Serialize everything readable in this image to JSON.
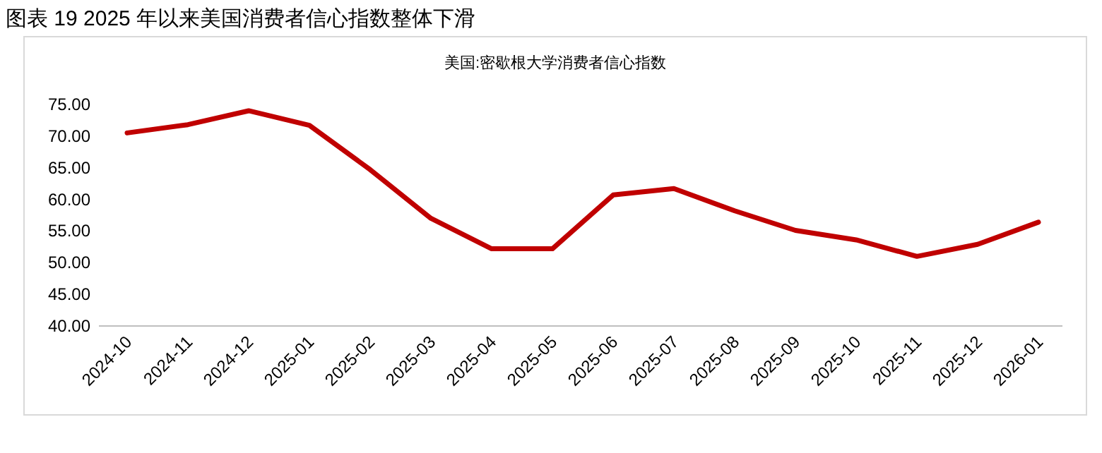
{
  "chart_data": {
    "type": "line",
    "title": "图表 19  2025 年以来美国消费者信心指数整体下滑",
    "subtitle": "美国:密歇根大学消费者信心指数",
    "categories": [
      "2024-10",
      "2024-11",
      "2024-12",
      "2025-01",
      "2025-02",
      "2025-03",
      "2025-04",
      "2025-05",
      "2025-06",
      "2025-07",
      "2025-08",
      "2025-09",
      "2025-10",
      "2025-11",
      "2025-12",
      "2026-01"
    ],
    "series": [
      {
        "color": "#c00000",
        "values": [
          70.5,
          71.8,
          74.0,
          71.7,
          64.7,
          57.0,
          52.2,
          52.2,
          60.7,
          61.7,
          58.2,
          55.1,
          53.6,
          51.0,
          52.9,
          56.4
        ]
      }
    ],
    "ylim": [
      40,
      75
    ],
    "yticks": [
      {
        "value": 40,
        "label": "40.00"
      },
      {
        "value": 45,
        "label": "45.00"
      },
      {
        "value": 50,
        "label": "50.00"
      },
      {
        "value": 55,
        "label": "55.00"
      },
      {
        "value": 60,
        "label": "60.00"
      },
      {
        "value": 65,
        "label": "65.00"
      },
      {
        "value": 70,
        "label": "70.00"
      },
      {
        "value": 75,
        "label": "75.00"
      }
    ],
    "grid": false,
    "marker": "none",
    "line_style": "solid"
  }
}
